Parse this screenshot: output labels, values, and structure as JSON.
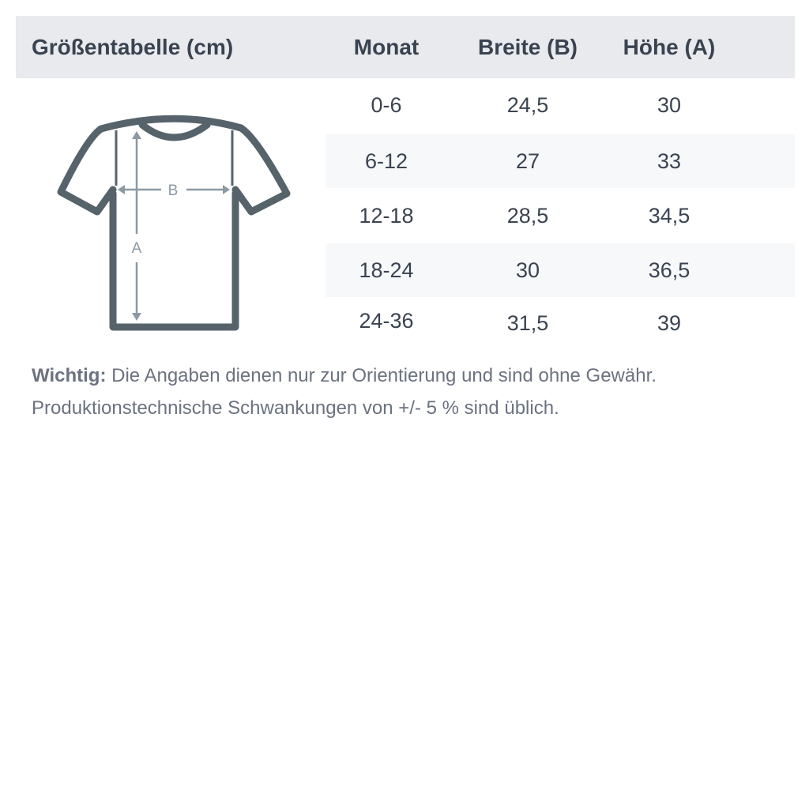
{
  "header": {
    "title": "Größentabelle (cm)",
    "columns": [
      "Monat",
      "Breite (B)",
      "Höhe (A)"
    ]
  },
  "rows": [
    {
      "monat": "0-6",
      "breite": "24,5",
      "hoehe": "30"
    },
    {
      "monat": "6-12",
      "breite": "27",
      "hoehe": "33"
    },
    {
      "monat": "12-18",
      "breite": "28,5",
      "hoehe": "34,5"
    },
    {
      "monat": "18-24",
      "breite": "30",
      "hoehe": "36,5"
    },
    {
      "monat": "24-36",
      "breite": "31,5",
      "hoehe": "39"
    }
  ],
  "diagram": {
    "label_b": "B",
    "label_a": "A",
    "icon": "tshirt-icon"
  },
  "note": {
    "bold": "Wichtig:",
    "line1": " Die Angaben dienen nur zur Orientierung und sind ohne Gewähr.",
    "line2": "Produktionstechnische Schwankungen von +/- 5 % sind üblich."
  },
  "colors": {
    "header_bg": "#e9eaee",
    "text": "#3a4350",
    "shirt": "#56636b",
    "arrows": "#8c99a3"
  }
}
